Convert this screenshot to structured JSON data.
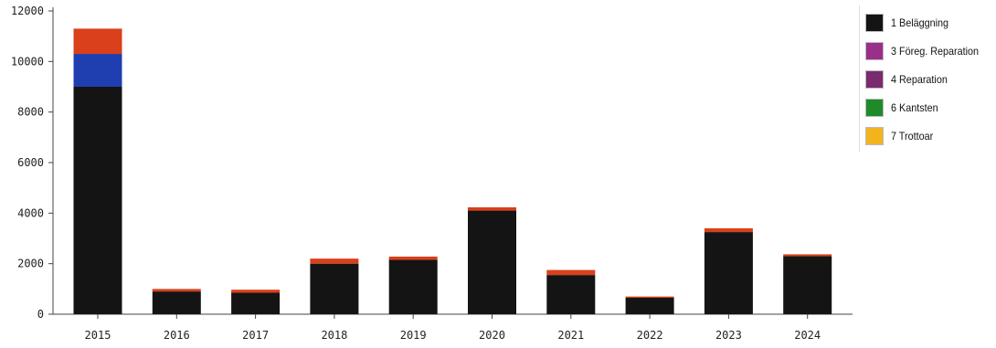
{
  "chart_data": {
    "type": "bar",
    "stacked": true,
    "title": "",
    "xlabel": "",
    "ylabel": "",
    "categories": [
      "2015",
      "2016",
      "2017",
      "2018",
      "2019",
      "2020",
      "2021",
      "2022",
      "2023",
      "2024"
    ],
    "ylim": [
      0,
      12000
    ],
    "yticks": [
      0,
      2000,
      4000,
      6000,
      8000,
      10000,
      12000
    ],
    "ytick_labels": [
      "0",
      "2000",
      "4000",
      "6000",
      "8000",
      "10000",
      "12000"
    ],
    "grid": false,
    "legend_position": "right",
    "segments": [
      {
        "color": "#141414",
        "values": [
          9000,
          900,
          850,
          2000,
          2150,
          4100,
          1550,
          650,
          3250,
          2300
        ]
      },
      {
        "color": "#1f3fb0",
        "values": [
          1300,
          0,
          0,
          0,
          0,
          0,
          0,
          0,
          0,
          0
        ]
      },
      {
        "color": "#d9401b",
        "values": [
          1000,
          100,
          120,
          200,
          130,
          130,
          200,
          50,
          150,
          70
        ]
      }
    ],
    "series": [
      {
        "name": "1 Beläggning",
        "color": "#141414"
      },
      {
        "name": "3 Föreg. Reparation",
        "color": "#9a2f8a"
      },
      {
        "name": "4 Reparation",
        "color": "#7a2a6e"
      },
      {
        "name": "6 Kantsten",
        "color": "#1f8a2a"
      },
      {
        "name": "7 Trottoar",
        "color": "#f2b41c"
      }
    ]
  }
}
